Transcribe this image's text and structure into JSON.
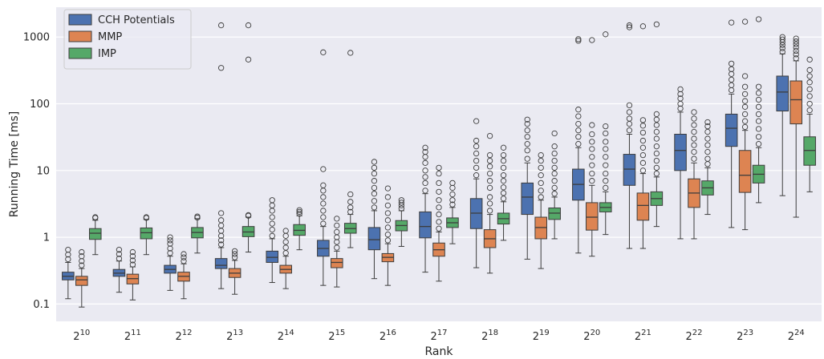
{
  "chart_data": {
    "type": "box",
    "xlabel": "Rank",
    "ylabel": "Running Time [ms]",
    "y_scale": "log",
    "ylim": [
      0.055,
      2800
    ],
    "grid": true,
    "legend_position": "top-left",
    "colors": {
      "background": "#eaeaf2",
      "grid": "#ffffff",
      "whisker": "#3d3d3d"
    },
    "y_ticks": [
      {
        "value": 0.1,
        "label": "0.1"
      },
      {
        "value": 1,
        "label": "1"
      },
      {
        "value": 10,
        "label": "10"
      },
      {
        "value": 100,
        "label": "100"
      },
      {
        "value": 1000,
        "label": "1000"
      }
    ],
    "categories": [
      {
        "base": "2",
        "exp": "10"
      },
      {
        "base": "2",
        "exp": "11"
      },
      {
        "base": "2",
        "exp": "12"
      },
      {
        "base": "2",
        "exp": "13"
      },
      {
        "base": "2",
        "exp": "14"
      },
      {
        "base": "2",
        "exp": "15"
      },
      {
        "base": "2",
        "exp": "16"
      },
      {
        "base": "2",
        "exp": "17"
      },
      {
        "base": "2",
        "exp": "18"
      },
      {
        "base": "2",
        "exp": "19"
      },
      {
        "base": "2",
        "exp": "20"
      },
      {
        "base": "2",
        "exp": "21"
      },
      {
        "base": "2",
        "exp": "22"
      },
      {
        "base": "2",
        "exp": "23"
      },
      {
        "base": "2",
        "exp": "24"
      }
    ],
    "series": [
      {
        "name": "CCH Potentials",
        "color": "#4c72b0",
        "boxes": [
          {
            "min": 0.12,
            "q1": 0.23,
            "median": 0.26,
            "q3": 0.3,
            "max": 0.42,
            "outliers": [
              0.47,
              0.55,
              0.65
            ]
          },
          {
            "min": 0.15,
            "q1": 0.26,
            "median": 0.29,
            "q3": 0.33,
            "max": 0.44,
            "outliers": [
              0.48,
              0.56,
              0.65
            ]
          },
          {
            "min": 0.16,
            "q1": 0.29,
            "median": 0.33,
            "q3": 0.38,
            "max": 0.52,
            "outliers": [
              0.58,
              0.68,
              0.8,
              0.9,
              1.0
            ]
          },
          {
            "min": 0.17,
            "q1": 0.34,
            "median": 0.38,
            "q3": 0.48,
            "max": 0.7,
            "outliers": [
              0.78,
              0.9,
              1.05,
              1.25,
              1.5,
              1.8,
              2.3,
              345,
              1500
            ]
          },
          {
            "min": 0.21,
            "q1": 0.42,
            "median": 0.5,
            "q3": 0.62,
            "max": 0.95,
            "outliers": [
              1.05,
              1.3,
              1.6,
              2.0,
              2.5,
              3.0,
              3.6
            ]
          },
          {
            "min": 0.19,
            "q1": 0.52,
            "median": 0.68,
            "q3": 0.9,
            "max": 1.45,
            "outliers": [
              1.6,
              2.0,
              2.5,
              3.2,
              4.0,
              5.0,
              6.0,
              10.5,
              590
            ]
          },
          {
            "min": 0.24,
            "q1": 0.65,
            "median": 0.92,
            "q3": 1.4,
            "max": 2.5,
            "outliers": [
              2.8,
              3.5,
              4.5,
              5.5,
              7.0,
              9.0,
              11,
              13.5
            ]
          },
          {
            "min": 0.3,
            "q1": 0.98,
            "median": 1.45,
            "q3": 2.4,
            "max": 4.5,
            "outliers": [
              5.0,
              6.5,
              8.0,
              10,
              13,
              16,
              19,
              22
            ]
          },
          {
            "min": 0.35,
            "q1": 1.35,
            "median": 2.3,
            "q3": 3.8,
            "max": 7.5,
            "outliers": [
              8.5,
              11,
              14,
              18,
              23,
              28,
              55
            ]
          },
          {
            "min": 0.47,
            "q1": 2.2,
            "median": 4.0,
            "q3": 6.5,
            "max": 13,
            "outliers": [
              15,
              20,
              25,
              32,
              40,
              50,
              58
            ]
          },
          {
            "min": 0.58,
            "q1": 3.6,
            "median": 6.2,
            "q3": 10.5,
            "max": 22,
            "outliers": [
              25,
              32,
              40,
              50,
              65,
              82,
              880,
              930
            ]
          },
          {
            "min": 0.68,
            "q1": 6.0,
            "median": 10.5,
            "q3": 17.5,
            "max": 35,
            "outliers": [
              40,
              50,
              60,
              75,
              95,
              1400,
              1500
            ]
          },
          {
            "min": 0.95,
            "q1": 10,
            "median": 20,
            "q3": 35,
            "max": 75,
            "outliers": [
              85,
              100,
              120,
              140,
              165
            ]
          },
          {
            "min": 1.4,
            "q1": 23,
            "median": 43,
            "q3": 70,
            "max": 140,
            "outliers": [
              160,
              190,
              230,
              280,
              330,
              400,
              1650
            ]
          },
          {
            "min": 4.2,
            "q1": 78,
            "median": 150,
            "q3": 260,
            "max": 560,
            "outliers": [
              600,
              680,
              760,
              840,
              920,
              1000
            ]
          }
        ]
      },
      {
        "name": "MMP",
        "color": "#dd8452",
        "boxes": [
          {
            "min": 0.09,
            "q1": 0.19,
            "median": 0.23,
            "q3": 0.26,
            "max": 0.34,
            "outliers": [
              0.38,
              0.44,
              0.52,
              0.6
            ]
          },
          {
            "min": 0.115,
            "q1": 0.2,
            "median": 0.24,
            "q3": 0.28,
            "max": 0.36,
            "outliers": [
              0.39,
              0.45,
              0.52,
              0.6
            ]
          },
          {
            "min": 0.12,
            "q1": 0.22,
            "median": 0.26,
            "q3": 0.3,
            "max": 0.4,
            "outliers": [
              0.44,
              0.5,
              0.56
            ]
          },
          {
            "min": 0.14,
            "q1": 0.25,
            "median": 0.29,
            "q3": 0.34,
            "max": 0.45,
            "outliers": [
              0.5,
              0.56,
              0.62
            ]
          },
          {
            "min": 0.17,
            "q1": 0.29,
            "median": 0.33,
            "q3": 0.38,
            "max": 0.52,
            "outliers": [
              0.58,
              0.7,
              0.85,
              1.05,
              1.25
            ]
          },
          {
            "min": 0.18,
            "q1": 0.35,
            "median": 0.42,
            "q3": 0.48,
            "max": 0.62,
            "outliers": [
              0.7,
              0.85,
              1.0,
              1.2,
              1.5,
              1.9
            ]
          },
          {
            "min": 0.19,
            "q1": 0.43,
            "median": 0.5,
            "q3": 0.57,
            "max": 0.8,
            "outliers": [
              0.9,
              1.1,
              1.4,
              1.8,
              2.3,
              3.0,
              4.0,
              5.4
            ]
          },
          {
            "min": 0.22,
            "q1": 0.52,
            "median": 0.65,
            "q3": 0.82,
            "max": 1.2,
            "outliers": [
              1.35,
              1.7,
              2.2,
              2.8,
              3.6,
              4.8,
              6.5,
              9.0,
              11
            ]
          },
          {
            "min": 0.29,
            "q1": 0.7,
            "median": 0.95,
            "q3": 1.3,
            "max": 2.2,
            "outliers": [
              2.5,
              3.2,
              4.0,
              5.5,
              7.0,
              9.0,
              11.5,
              14,
              17,
              33
            ]
          },
          {
            "min": 0.34,
            "q1": 0.95,
            "median": 1.4,
            "q3": 2.0,
            "max": 3.6,
            "outliers": [
              4.0,
              5.0,
              6.5,
              8.5,
              11,
              14,
              17
            ]
          },
          {
            "min": 0.52,
            "q1": 1.28,
            "median": 2.0,
            "q3": 3.3,
            "max": 6.0,
            "outliers": [
              7.0,
              9.0,
              12,
              16,
              21,
              27,
              35,
              48,
              900
            ]
          },
          {
            "min": 0.68,
            "q1": 1.8,
            "median": 3.0,
            "q3": 4.6,
            "max": 9.0,
            "outliers": [
              10,
              13,
              17,
              22,
              28,
              37,
              47,
              57,
              1450
            ]
          },
          {
            "min": 0.95,
            "q1": 2.8,
            "median": 4.6,
            "q3": 7.5,
            "max": 13,
            "outliers": [
              15,
              19,
              24,
              30,
              38,
              48,
              60,
              75
            ]
          },
          {
            "min": 1.3,
            "q1": 4.7,
            "median": 8.5,
            "q3": 20,
            "max": 40,
            "outliers": [
              45,
              55,
              70,
              90,
              110,
              140,
              180,
              260,
              1700
            ]
          },
          {
            "min": 2.0,
            "q1": 50,
            "median": 115,
            "q3": 220,
            "max": 440,
            "outliers": [
              480,
              550,
              620,
              700,
              780,
              860,
              950
            ]
          }
        ]
      },
      {
        "name": "IMP",
        "color": "#55a868",
        "boxes": [
          {
            "min": 0.55,
            "q1": 0.93,
            "median": 1.15,
            "q3": 1.35,
            "max": 1.8,
            "outliers": [
              1.95,
              2.0
            ]
          },
          {
            "min": 0.55,
            "q1": 0.95,
            "median": 1.17,
            "q3": 1.38,
            "max": 1.85,
            "outliers": [
              1.95,
              2.0
            ]
          },
          {
            "min": 0.58,
            "q1": 0.98,
            "median": 1.18,
            "q3": 1.4,
            "max": 1.9,
            "outliers": [
              1.97,
              2.05
            ]
          },
          {
            "min": 0.6,
            "q1": 1.02,
            "median": 1.2,
            "q3": 1.45,
            "max": 2.0,
            "outliers": [
              2.1,
              2.15,
              460,
              1500
            ]
          },
          {
            "min": 0.65,
            "q1": 1.07,
            "median": 1.27,
            "q3": 1.55,
            "max": 2.1,
            "outliers": [
              2.25,
              2.4,
              2.55
            ]
          },
          {
            "min": 0.7,
            "q1": 1.15,
            "median": 1.35,
            "q3": 1.62,
            "max": 2.2,
            "outliers": [
              2.4,
              2.8,
              3.4,
              4.4,
              580
            ]
          },
          {
            "min": 0.73,
            "q1": 1.25,
            "median": 1.5,
            "q3": 1.78,
            "max": 2.5,
            "outliers": [
              2.7,
              3.0,
              3.3,
              3.6
            ]
          },
          {
            "min": 0.8,
            "q1": 1.4,
            "median": 1.65,
            "q3": 1.95,
            "max": 2.8,
            "outliers": [
              3.1,
              3.6,
              4.4,
              5.5,
              6.5
            ]
          },
          {
            "min": 0.9,
            "q1": 1.58,
            "median": 1.9,
            "q3": 2.3,
            "max": 3.4,
            "outliers": [
              3.8,
              4.6,
              5.6,
              7.0,
              8.5,
              11,
              14,
              17,
              22
            ]
          },
          {
            "min": 0.95,
            "q1": 1.85,
            "median": 2.3,
            "q3": 2.75,
            "max": 4.0,
            "outliers": [
              4.5,
              5.5,
              7.0,
              9.0,
              11,
              14,
              18,
              23,
              36
            ]
          },
          {
            "min": 1.1,
            "q1": 2.4,
            "median": 2.8,
            "q3": 3.3,
            "max": 4.8,
            "outliers": [
              5.5,
              7.0,
              9.0,
              12,
              16,
              21,
              27,
              36,
              46,
              1100
            ]
          },
          {
            "min": 1.45,
            "q1": 3.0,
            "median": 3.8,
            "q3": 4.8,
            "max": 8.0,
            "outliers": [
              9.0,
              11,
              14,
              18,
              23,
              30,
              38,
              48,
              58,
              70,
              1550
            ]
          },
          {
            "min": 2.2,
            "q1": 4.3,
            "median": 5.5,
            "q3": 7.0,
            "max": 11,
            "outliers": [
              12.5,
              15,
              19,
              24,
              30,
              38,
              46,
              53
            ]
          },
          {
            "min": 3.3,
            "q1": 6.5,
            "median": 8.8,
            "q3": 12,
            "max": 22,
            "outliers": [
              25,
              32,
              42,
              55,
              70,
              90,
              115,
              145,
              180,
              1850
            ]
          },
          {
            "min": 4.8,
            "q1": 12,
            "median": 20,
            "q3": 32,
            "max": 70,
            "outliers": [
              80,
              100,
              130,
              165,
              210,
              260,
              320,
              460
            ]
          }
        ]
      }
    ]
  }
}
